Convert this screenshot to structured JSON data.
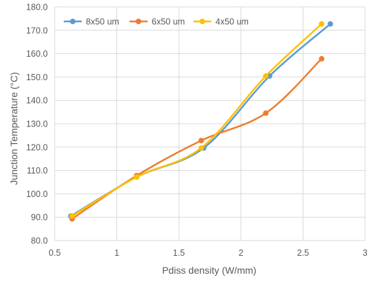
{
  "chart_data": {
    "type": "line",
    "smooth": true,
    "xlabel": "Pdiss density (W/mm)",
    "ylabel": "Junction Temperature (°C)",
    "xlim": [
      0.5,
      3
    ],
    "ylim": [
      80,
      180
    ],
    "xticks": [
      0.5,
      1,
      1.5,
      2,
      2.5,
      3
    ],
    "xtick_labels": [
      "0.5",
      "1",
      "1.5",
      "2",
      "2.5",
      "3"
    ],
    "yticks": [
      80,
      90,
      100,
      110,
      120,
      130,
      140,
      150,
      160,
      170,
      180
    ],
    "ytick_labels": [
      "80.0",
      "90.0",
      "100.0",
      "110.0",
      "120.0",
      "130.0",
      "140.0",
      "150.0",
      "160.0",
      "170.0",
      "180.0"
    ],
    "grid": true,
    "legend_position": "top-left",
    "series": [
      {
        "name": "8x50 um",
        "color": "#5b9bd5",
        "x": [
          0.63,
          1.16,
          1.7,
          2.23,
          2.72
        ],
        "y": [
          90.5,
          107.2,
          119.6,
          150.4,
          172.7
        ]
      },
      {
        "name": "6x50 um",
        "color": "#ed7d31",
        "x": [
          0.64,
          1.16,
          1.68,
          2.2,
          2.65
        ],
        "y": [
          89.3,
          107.8,
          122.8,
          134.5,
          157.8
        ]
      },
      {
        "name": "4x50 um",
        "color": "#ffc000",
        "x": [
          0.64,
          1.16,
          1.68,
          2.2,
          2.65
        ],
        "y": [
          90.5,
          107.2,
          119.6,
          150.4,
          172.7
        ]
      }
    ]
  }
}
